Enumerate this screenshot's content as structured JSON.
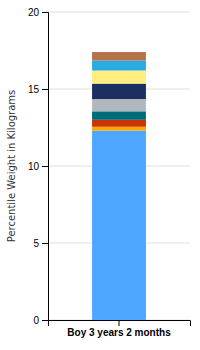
{
  "chart_data": {
    "type": "bar",
    "stacked": true,
    "categories": [
      "Boy 3 years 2 months"
    ],
    "series": [
      {
        "color": "#4da6ff",
        "values": [
          12.3
        ]
      },
      {
        "color": "#FFA500",
        "values": [
          0.25
        ]
      },
      {
        "color": "#CC3300",
        "values": [
          0.45
        ]
      },
      {
        "color": "#006B7A",
        "values": [
          0.55
        ]
      },
      {
        "color": "#B0B8BE",
        "values": [
          0.8
        ]
      },
      {
        "color": "#1B3060",
        "values": [
          1.0
        ]
      },
      {
        "color": "#FFED80",
        "values": [
          0.85
        ]
      },
      {
        "color": "#29ABE2",
        "values": [
          0.65
        ]
      },
      {
        "color": "#B5724A",
        "values": [
          0.55
        ]
      }
    ],
    "y_label": "Percentile Weight in Kilograms",
    "ylim": [
      0,
      20
    ],
    "yticks": [
      0,
      5,
      10,
      15,
      20
    ],
    "grid": true
  }
}
